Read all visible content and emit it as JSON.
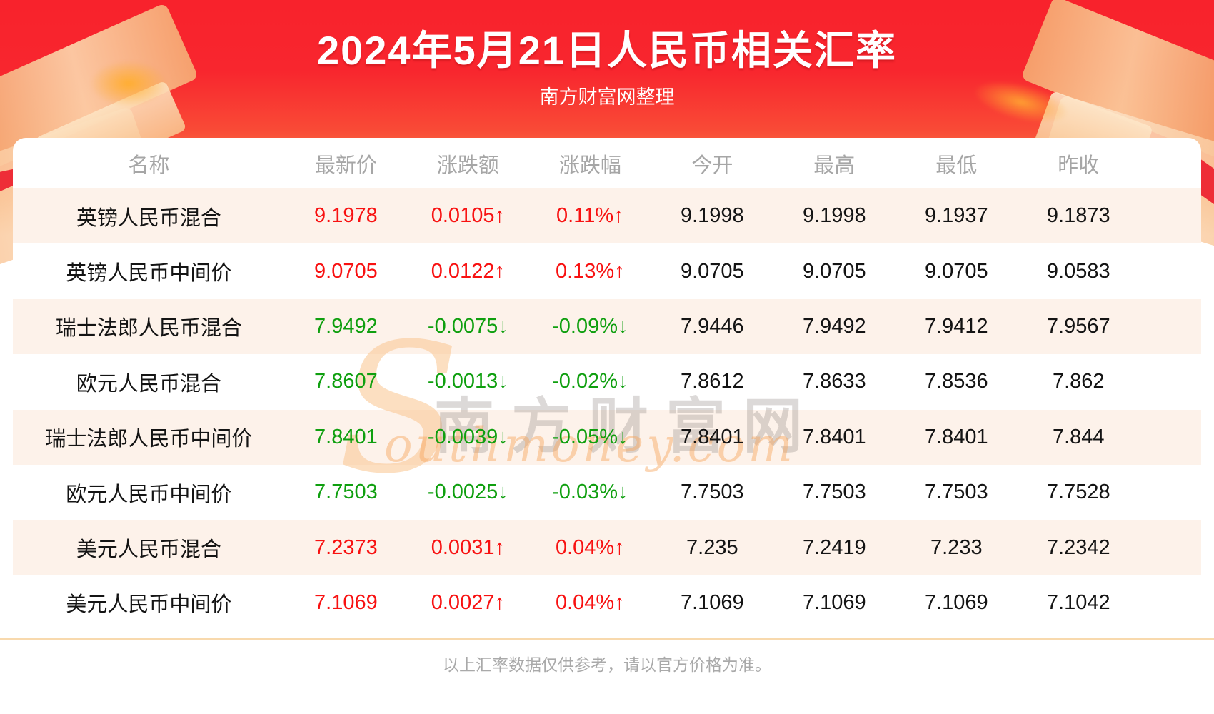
{
  "header": {
    "title": "2024年5月21日人民币相关汇率",
    "subtitle": "南方财富网整理"
  },
  "chart_data": {
    "type": "table",
    "title": "2024年5月21日人民币相关汇率",
    "columns": [
      "名称",
      "最新价",
      "涨跌额",
      "涨跌幅",
      "今开",
      "最高",
      "最低",
      "昨收"
    ],
    "rows": [
      {
        "name": "英镑人民币混合",
        "latest": "9.1978",
        "change": "0.0105↑",
        "change_pct": "0.11%↑",
        "open": "9.1998",
        "high": "9.1998",
        "low": "9.1937",
        "prev_close": "9.1873",
        "trend": "up"
      },
      {
        "name": "英镑人民币中间价",
        "latest": "9.0705",
        "change": "0.0122↑",
        "change_pct": "0.13%↑",
        "open": "9.0705",
        "high": "9.0705",
        "low": "9.0705",
        "prev_close": "9.0583",
        "trend": "up"
      },
      {
        "name": "瑞士法郎人民币混合",
        "latest": "7.9492",
        "change": "-0.0075↓",
        "change_pct": "-0.09%↓",
        "open": "7.9446",
        "high": "7.9492",
        "low": "7.9412",
        "prev_close": "7.9567",
        "trend": "down"
      },
      {
        "name": "欧元人民币混合",
        "latest": "7.8607",
        "change": "-0.0013↓",
        "change_pct": "-0.02%↓",
        "open": "7.8612",
        "high": "7.8633",
        "low": "7.8536",
        "prev_close": "7.862",
        "trend": "down"
      },
      {
        "name": "瑞士法郎人民币中间价",
        "latest": "7.8401",
        "change": "-0.0039↓",
        "change_pct": "-0.05%↓",
        "open": "7.8401",
        "high": "7.8401",
        "low": "7.8401",
        "prev_close": "7.844",
        "trend": "down"
      },
      {
        "name": "欧元人民币中间价",
        "latest": "7.7503",
        "change": "-0.0025↓",
        "change_pct": "-0.03%↓",
        "open": "7.7503",
        "high": "7.7503",
        "low": "7.7503",
        "prev_close": "7.7528",
        "trend": "down"
      },
      {
        "name": "美元人民币混合",
        "latest": "7.2373",
        "change": "0.0031↑",
        "change_pct": "0.04%↑",
        "open": "7.235",
        "high": "7.2419",
        "low": "7.233",
        "prev_close": "7.2342",
        "trend": "up"
      },
      {
        "name": "美元人民币中间价",
        "latest": "7.1069",
        "change": "0.0027↑",
        "change_pct": "0.04%↑",
        "open": "7.1069",
        "high": "7.1069",
        "low": "7.1069",
        "prev_close": "7.1042",
        "trend": "up"
      }
    ]
  },
  "watermark": {
    "initial": "S",
    "cjk": "南方财富网",
    "latin": "outhmoney.com"
  },
  "footer": {
    "note": "以上汇率数据仅供参考，请以官方价格为准。"
  },
  "colors": {
    "up": "#f81111",
    "down": "#0f9f0f",
    "accent_red": "#f8222c",
    "stripe": "#fdf2ea",
    "divider": "#f8d9ad"
  }
}
